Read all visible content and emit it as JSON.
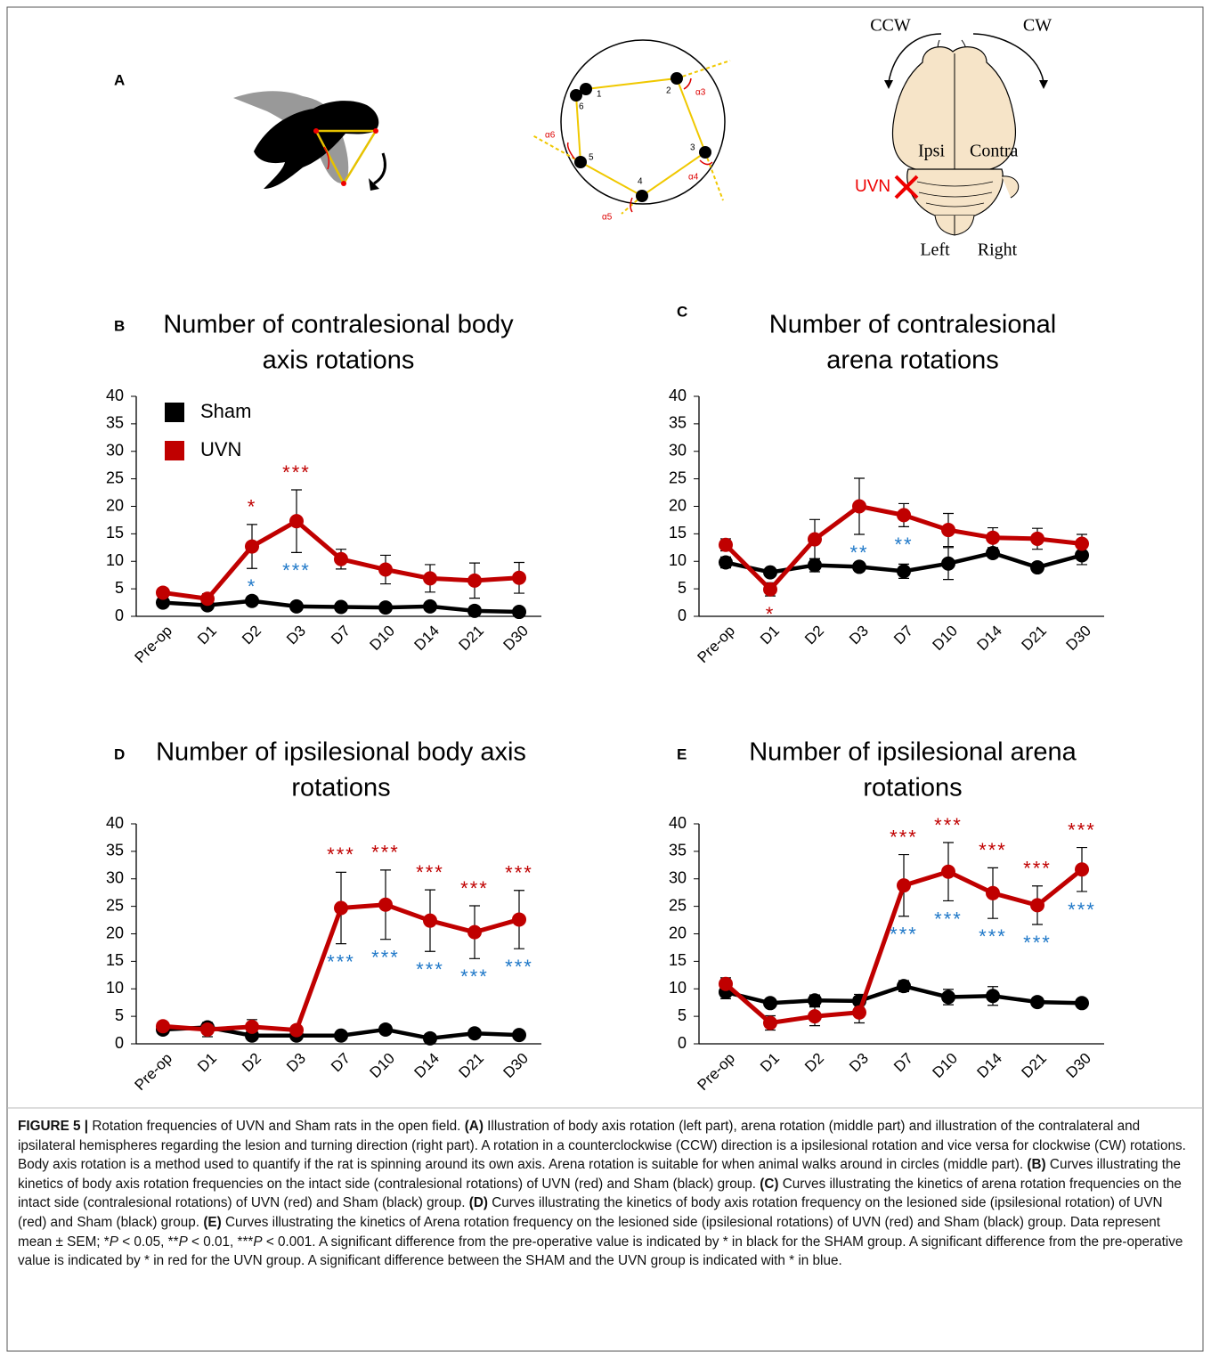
{
  "panel_a": {
    "label": "A",
    "arena": {
      "points": [
        "1",
        "2",
        "3",
        "4",
        "5",
        "6"
      ],
      "angles": [
        "α3",
        "α4",
        "α5",
        "α6"
      ]
    },
    "brain": {
      "ccw": "CCW",
      "cw": "CW",
      "ipsi": "Ipsi",
      "contra": "Contra",
      "lesion": "UVN",
      "left": "Left",
      "right": "Right"
    }
  },
  "chart_data": [
    {
      "type": "line",
      "label": "B",
      "title": [
        "Number of contralesional body",
        "axis rotations"
      ],
      "categories": [
        "Pre-op",
        "D1",
        "D2",
        "D3",
        "D7",
        "D10",
        "D14",
        "D21",
        "D30"
      ],
      "ylim": [
        0,
        40
      ],
      "yticks": [
        0,
        5,
        10,
        15,
        20,
        25,
        30,
        35,
        40
      ],
      "legend": true,
      "series": [
        {
          "name": "Sham",
          "color": "#000000",
          "values": [
            2.5,
            2.0,
            2.8,
            1.8,
            1.7,
            1.6,
            1.8,
            1.0,
            0.8
          ],
          "errors": [
            0.5,
            0.4,
            0.5,
            0.3,
            0.3,
            0.3,
            0.3,
            0.3,
            0.3
          ]
        },
        {
          "name": "UVN",
          "color": "#c00000",
          "values": [
            4.3,
            3.2,
            12.7,
            17.3,
            10.4,
            8.5,
            6.9,
            6.5,
            7.0
          ],
          "errors": [
            0.6,
            0.9,
            4.0,
            5.7,
            1.8,
            2.6,
            2.5,
            3.2,
            2.8
          ]
        }
      ],
      "annotations": [
        {
          "category": "D2",
          "text": "*",
          "color": "#c00000",
          "position": "above"
        },
        {
          "category": "D3",
          "text": "***",
          "color": "#c00000",
          "position": "above"
        },
        {
          "category": "D2",
          "text": "*",
          "color": "#1f78c8",
          "position": "below"
        },
        {
          "category": "D3",
          "text": "***",
          "color": "#1f78c8",
          "position": "below"
        }
      ]
    },
    {
      "type": "line",
      "label": "C",
      "title": [
        "Number of contralesional",
        "arena rotations"
      ],
      "categories": [
        "Pre-op",
        "D1",
        "D2",
        "D3",
        "D7",
        "D10",
        "D14",
        "D21",
        "D30"
      ],
      "ylim": [
        0,
        40
      ],
      "yticks": [
        0,
        5,
        10,
        15,
        20,
        25,
        30,
        35,
        40
      ],
      "legend": false,
      "series": [
        {
          "color": "#000000",
          "values": [
            9.8,
            8.0,
            9.3,
            9.0,
            8.2,
            9.6,
            11.5,
            8.9,
            11.1
          ],
          "errors": [
            1.0,
            0.6,
            1.2,
            0.8,
            1.3,
            2.9,
            0.8,
            0.6,
            1.7
          ]
        },
        {
          "color": "#c00000",
          "values": [
            13.0,
            4.9,
            14.0,
            20.0,
            18.4,
            15.7,
            14.3,
            14.1,
            13.2
          ],
          "errors": [
            1.1,
            1.2,
            3.6,
            5.1,
            2.1,
            3.0,
            1.8,
            1.9,
            1.7
          ]
        }
      ],
      "annotations": [
        {
          "category": "D1",
          "text": "*",
          "color": "#c00000",
          "position": "below"
        },
        {
          "category": "D3",
          "text": "**",
          "color": "#1f78c8",
          "position": "below"
        },
        {
          "category": "D7",
          "text": "**",
          "color": "#1f78c8",
          "position": "below"
        }
      ]
    },
    {
      "type": "line",
      "label": "D",
      "title": [
        "Number of ipsilesional body axis",
        "rotations"
      ],
      "categories": [
        "Pre-op",
        "D1",
        "D2",
        "D3",
        "D7",
        "D10",
        "D14",
        "D21",
        "D30"
      ],
      "ylim": [
        0,
        40
      ],
      "yticks": [
        0,
        5,
        10,
        15,
        20,
        25,
        30,
        35,
        40
      ],
      "legend": false,
      "series": [
        {
          "color": "#000000",
          "values": [
            2.6,
            3.0,
            1.5,
            1.5,
            1.5,
            2.6,
            1.0,
            1.9,
            1.6
          ],
          "errors": [
            0.4,
            0.5,
            0.3,
            0.3,
            0.3,
            0.7,
            0.3,
            0.3,
            0.3
          ]
        },
        {
          "color": "#c00000",
          "values": [
            3.2,
            2.6,
            3.1,
            2.5,
            24.7,
            25.3,
            22.4,
            20.3,
            22.6
          ],
          "errors": [
            0.5,
            1.3,
            1.3,
            0.3,
            6.5,
            6.3,
            5.6,
            4.8,
            5.3
          ]
        }
      ],
      "annotations": [
        {
          "category": "D7",
          "text": "***",
          "color": "#c00000",
          "position": "above"
        },
        {
          "category": "D10",
          "text": "***",
          "color": "#c00000",
          "position": "above"
        },
        {
          "category": "D14",
          "text": "***",
          "color": "#c00000",
          "position": "above"
        },
        {
          "category": "D21",
          "text": "***",
          "color": "#c00000",
          "position": "above"
        },
        {
          "category": "D30",
          "text": "***",
          "color": "#c00000",
          "position": "above"
        },
        {
          "category": "D7",
          "text": "***",
          "color": "#1f78c8",
          "position": "below"
        },
        {
          "category": "D10",
          "text": "***",
          "color": "#1f78c8",
          "position": "below"
        },
        {
          "category": "D14",
          "text": "***",
          "color": "#1f78c8",
          "position": "below"
        },
        {
          "category": "D21",
          "text": "***",
          "color": "#1f78c8",
          "position": "below"
        },
        {
          "category": "D30",
          "text": "***",
          "color": "#1f78c8",
          "position": "below"
        }
      ]
    },
    {
      "type": "line",
      "label": "E",
      "title": [
        "Number of ipsilesional arena",
        "rotations"
      ],
      "categories": [
        "Pre-op",
        "D1",
        "D2",
        "D3",
        "D7",
        "D10",
        "D14",
        "D21",
        "D30"
      ],
      "ylim": [
        0,
        40
      ],
      "yticks": [
        0,
        5,
        10,
        15,
        20,
        25,
        30,
        35,
        40
      ],
      "legend": false,
      "series": [
        {
          "color": "#000000",
          "values": [
            9.4,
            7.4,
            7.9,
            7.8,
            10.5,
            8.5,
            8.7,
            7.6,
            7.4
          ],
          "errors": [
            1.2,
            0.5,
            1.0,
            1.2,
            1.0,
            1.4,
            1.7,
            0.5,
            0.5
          ]
        },
        {
          "color": "#c00000",
          "values": [
            10.9,
            3.8,
            5.0,
            5.7,
            28.8,
            31.3,
            27.4,
            25.2,
            31.7
          ],
          "errors": [
            1.1,
            1.3,
            1.7,
            1.9,
            5.6,
            5.3,
            4.6,
            3.5,
            4.0
          ]
        }
      ],
      "annotations": [
        {
          "category": "D7",
          "text": "***",
          "color": "#c00000",
          "position": "above"
        },
        {
          "category": "D10",
          "text": "***",
          "color": "#c00000",
          "position": "above"
        },
        {
          "category": "D14",
          "text": "***",
          "color": "#c00000",
          "position": "above"
        },
        {
          "category": "D21",
          "text": "***",
          "color": "#c00000",
          "position": "above"
        },
        {
          "category": "D30",
          "text": "***",
          "color": "#c00000",
          "position": "above"
        },
        {
          "category": "D7",
          "text": "***",
          "color": "#1f78c8",
          "position": "below"
        },
        {
          "category": "D10",
          "text": "***",
          "color": "#1f78c8",
          "position": "below"
        },
        {
          "category": "D14",
          "text": "***",
          "color": "#1f78c8",
          "position": "below"
        },
        {
          "category": "D21",
          "text": "***",
          "color": "#1f78c8",
          "position": "below"
        },
        {
          "category": "D30",
          "text": "***",
          "color": "#1f78c8",
          "position": "below"
        }
      ]
    }
  ],
  "caption": [
    {
      "text": "FIGURE 5 |",
      "style": "bold"
    },
    {
      "text": " Rotation frequencies of UVN and Sham rats in the open field. ",
      "style": "normal"
    },
    {
      "text": "(A)",
      "style": "bold"
    },
    {
      "text": " Illustration of body axis rotation (left part), arena rotation (middle part) and illustration of the contralateral and ipsilateral hemispheres regarding the lesion and turning direction (right part). A rotation in a counterclockwise (CCW) direction is a ipsilesional rotation and vice versa for clockwise (CW) rotations. Body axis rotation is a method used to quantify if the rat is spinning around its own axis. Arena rotation is suitable for when animal walks around in circles (middle part). ",
      "style": "normal"
    },
    {
      "text": "(B)",
      "style": "bold"
    },
    {
      "text": " Curves illustrating the kinetics of body axis rotation frequencies on the intact side (contralesional rotations) of UVN (red) and Sham (black) group. ",
      "style": "normal"
    },
    {
      "text": "(C)",
      "style": "bold"
    },
    {
      "text": " Curves illustrating the kinetics of arena rotation frequencies on the intact side (contralesional rotations) of UVN (red) and Sham (black) group. ",
      "style": "normal"
    },
    {
      "text": "(D)",
      "style": "bold"
    },
    {
      "text": " Curves illustrating the kinetics of body axis rotation frequency on the lesioned side (ipsilesional rotation) of UVN (red) and Sham (black) group. ",
      "style": "normal"
    },
    {
      "text": "(E)",
      "style": "bold"
    },
    {
      "text": " Curves illustrating the kinetics of Arena rotation frequency on the lesioned side (ipsilesional rotations) of UVN (red) and Sham (black) group. Data represent mean ± SEM; *",
      "style": "normal"
    },
    {
      "text": "P",
      "style": "italic"
    },
    {
      "text": " < 0.05, **",
      "style": "normal"
    },
    {
      "text": "P",
      "style": "italic"
    },
    {
      "text": " < 0.01, ***",
      "style": "normal"
    },
    {
      "text": "P",
      "style": "italic"
    },
    {
      "text": " < 0.001. A significant difference from the pre-operative value is indicated by * in black for the SHAM group. A significant difference from the pre-operative value is indicated by * in red for the UVN group. A significant difference between the SHAM and the UVN group is indicated with * in blue.",
      "style": "normal"
    }
  ]
}
